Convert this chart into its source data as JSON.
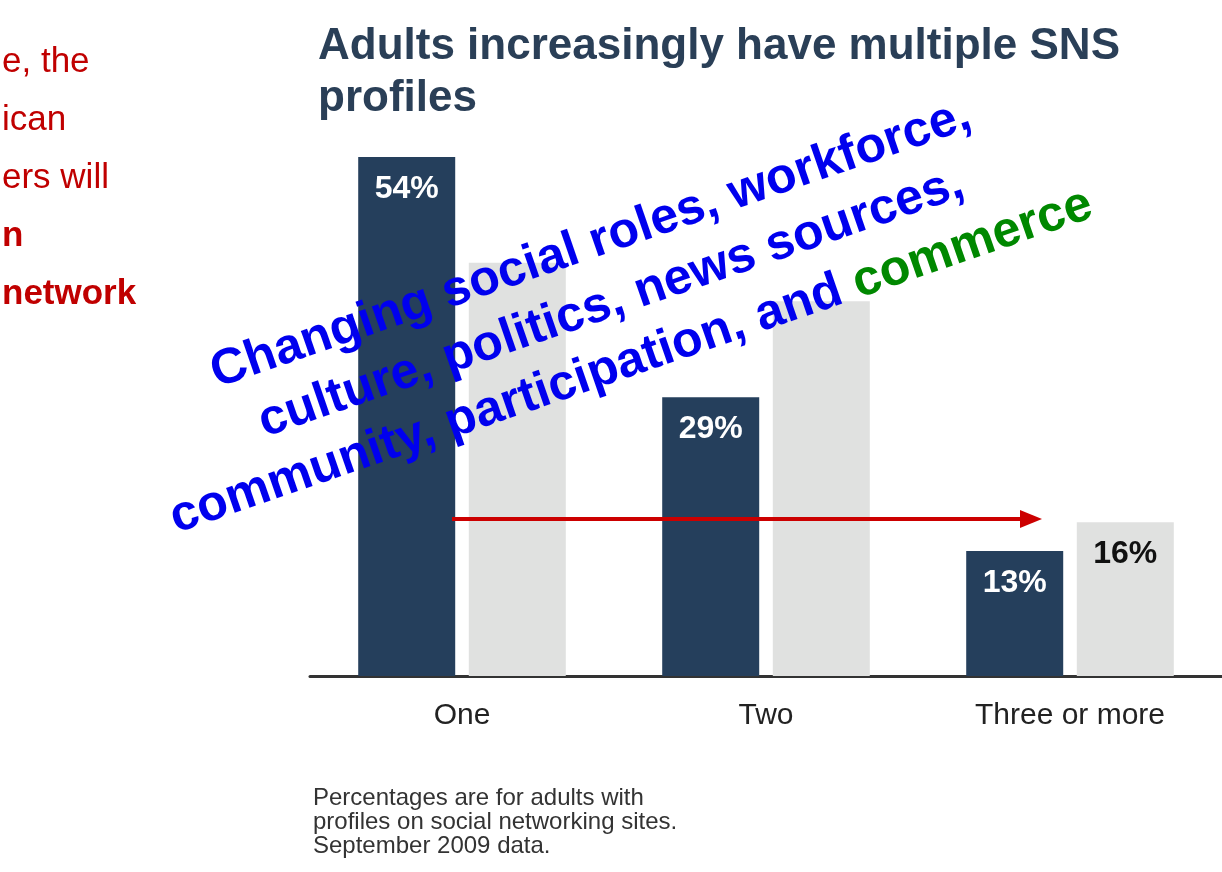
{
  "chart_data": {
    "type": "bar",
    "title": "Adults increasingly have multiple SNS profiles",
    "categories": [
      "One",
      "Two",
      "Three or more"
    ],
    "series": [
      {
        "color": "#253f5c",
        "values": [
          54,
          29,
          13
        ],
        "value_labels": [
          "54%",
          "29%",
          "13%"
        ]
      },
      {
        "color": "#e0e1e0",
        "values": [
          43,
          39,
          16
        ],
        "value_labels": [
          null,
          null,
          "16%"
        ]
      }
    ],
    "annotations": [
      "e, the\nican\ners will",
      "n\nnetwork",
      "Changing social roles, workforce,\nculture, politics, news sources,\ncommunity, participation, and commerce",
      "Percentages are for adults with\nprofiles on social networking sites.\nSeptember 2009 data."
    ]
  }
}
